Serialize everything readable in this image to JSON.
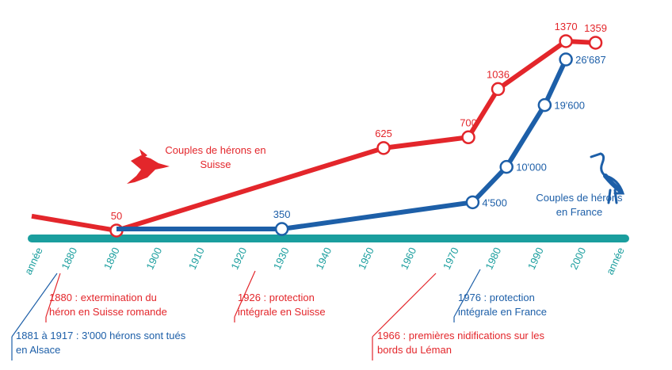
{
  "chart_data": {
    "type": "line",
    "xlabel": "année",
    "xlim": [
      1870,
      2010
    ],
    "xticks": [
      1880,
      1890,
      1900,
      1910,
      1920,
      1930,
      1940,
      1950,
      1960,
      1970,
      1980,
      1990,
      2000
    ],
    "ylim": [
      0,
      1436
    ],
    "y2lim": [
      -1000,
      31000
    ],
    "series": [
      {
        "name": "Couples de hérons en Suisse",
        "color": "#e3262b",
        "x": [
          1870,
          1890,
          1953,
          1973,
          1980,
          1996,
          2003
        ],
        "values": [
          150,
          50,
          625,
          700,
          1036,
          1370,
          1359
        ],
        "value_labels": [
          null,
          "50",
          "625",
          "700",
          "1036",
          "1370",
          "1359"
        ]
      },
      {
        "name": "Couples de hérons en France",
        "color": "#1d5fa8",
        "axis": "y2",
        "x": [
          1890,
          1929,
          1974,
          1982,
          1991,
          1996
        ],
        "values": [
          350,
          350,
          4500,
          10000,
          19600,
          26687
        ],
        "value_labels": [
          null,
          "350",
          "4'500",
          "10'000",
          "19'600",
          "26'687"
        ]
      }
    ],
    "axis_color": "#1a9e9e",
    "annotations": [
      {
        "text": "1880 : extermination du héron en Suisse romande",
        "color": "#e3262b"
      },
      {
        "text": "1881 à 1917 : 3'000 hérons sont tués en Alsace",
        "color": "#1d5fa8"
      },
      {
        "text": "1926 : protection intégrale en Suisse",
        "color": "#e3262b"
      },
      {
        "text": "1966 : premières nidifications sur les bords du Léman",
        "color": "#e3262b"
      },
      {
        "text": "1976 : protection intégrale en France",
        "color": "#1d5fa8"
      }
    ]
  }
}
